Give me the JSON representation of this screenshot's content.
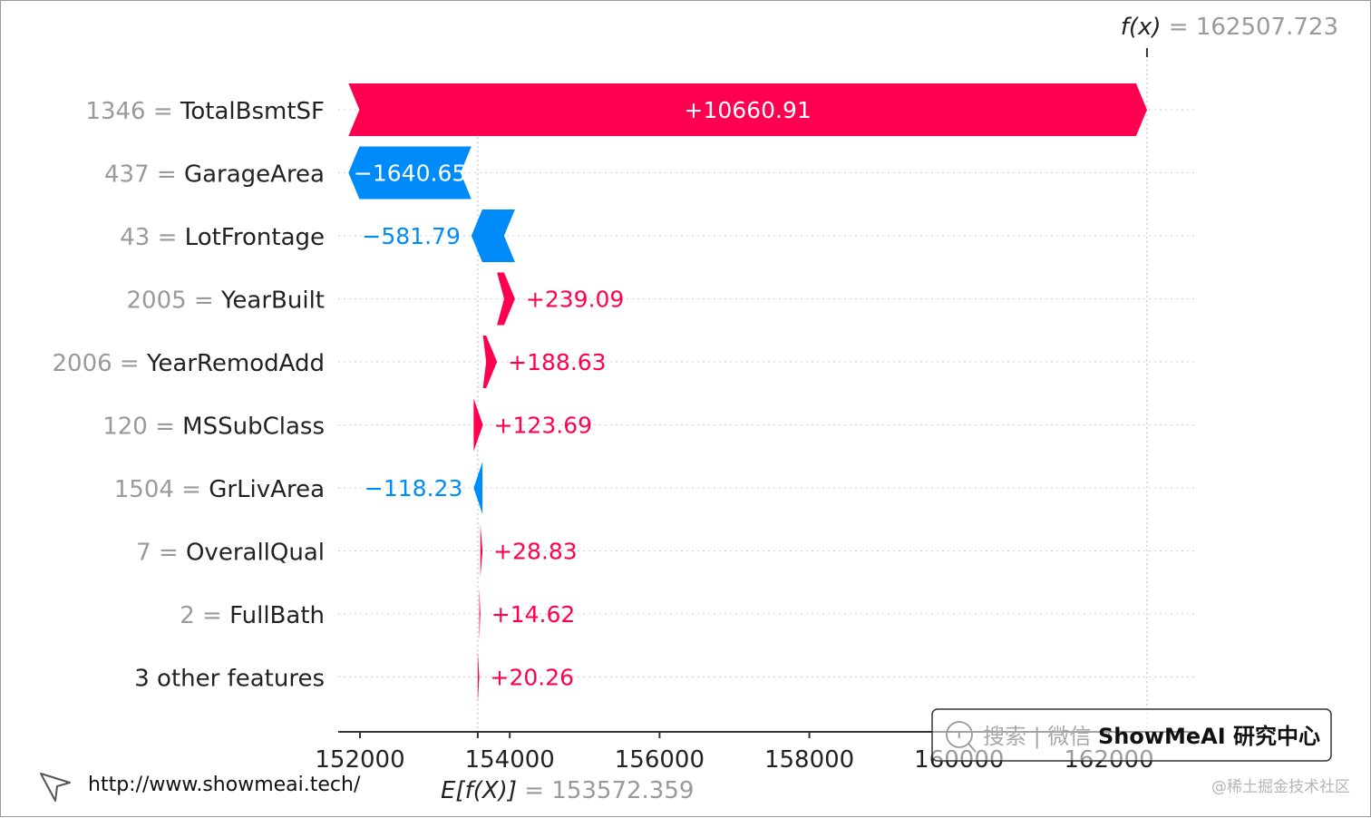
{
  "chart_data": {
    "type": "waterfall",
    "base_value": 153572.359,
    "base_value_text": "153572.359",
    "base_label": "E[f(X)]",
    "output_value": 162507.723,
    "output_value_text": "162507.723",
    "output_label": "f(x)",
    "xlim": [
      151750,
      162750
    ],
    "xticks": [
      152000,
      154000,
      156000,
      158000,
      160000,
      162000
    ],
    "xtick_labels": [
      "152000",
      "154000",
      "156000",
      "158000",
      "160000",
      "162000"
    ],
    "features": [
      {
        "value": "1346",
        "name": "TotalBsmtSF",
        "contribution": 10660.91,
        "label": "+10660.91"
      },
      {
        "value": "437",
        "name": "GarageArea",
        "contribution": -1640.65,
        "label": "−1640.65"
      },
      {
        "value": "43",
        "name": "LotFrontage",
        "contribution": -581.79,
        "label": "−581.79"
      },
      {
        "value": "2005",
        "name": "YearBuilt",
        "contribution": 239.09,
        "label": "+239.09"
      },
      {
        "value": "2006",
        "name": "YearRemodAdd",
        "contribution": 188.63,
        "label": "+188.63"
      },
      {
        "value": "120",
        "name": "MSSubClass",
        "contribution": 123.69,
        "label": "+123.69"
      },
      {
        "value": "1504",
        "name": "GrLivArea",
        "contribution": -118.23,
        "label": "−118.23"
      },
      {
        "value": "7",
        "name": "OverallQual",
        "contribution": 28.83,
        "label": "+28.83"
      },
      {
        "value": "2",
        "name": "FullBath",
        "contribution": 14.62,
        "label": "+14.62"
      },
      {
        "value": "",
        "name": "3 other features",
        "contribution": 20.26,
        "label": "+20.26"
      }
    ],
    "colors": {
      "positive": "#ff0051",
      "negative": "#008bfb"
    }
  },
  "watermarks": {
    "url": "http://www.showmeai.tech/",
    "search_box": {
      "prefix": "搜索 | 微信",
      "brand": "ShowMeAI 研究中心"
    },
    "corner": "@稀土掘金技术社区"
  }
}
